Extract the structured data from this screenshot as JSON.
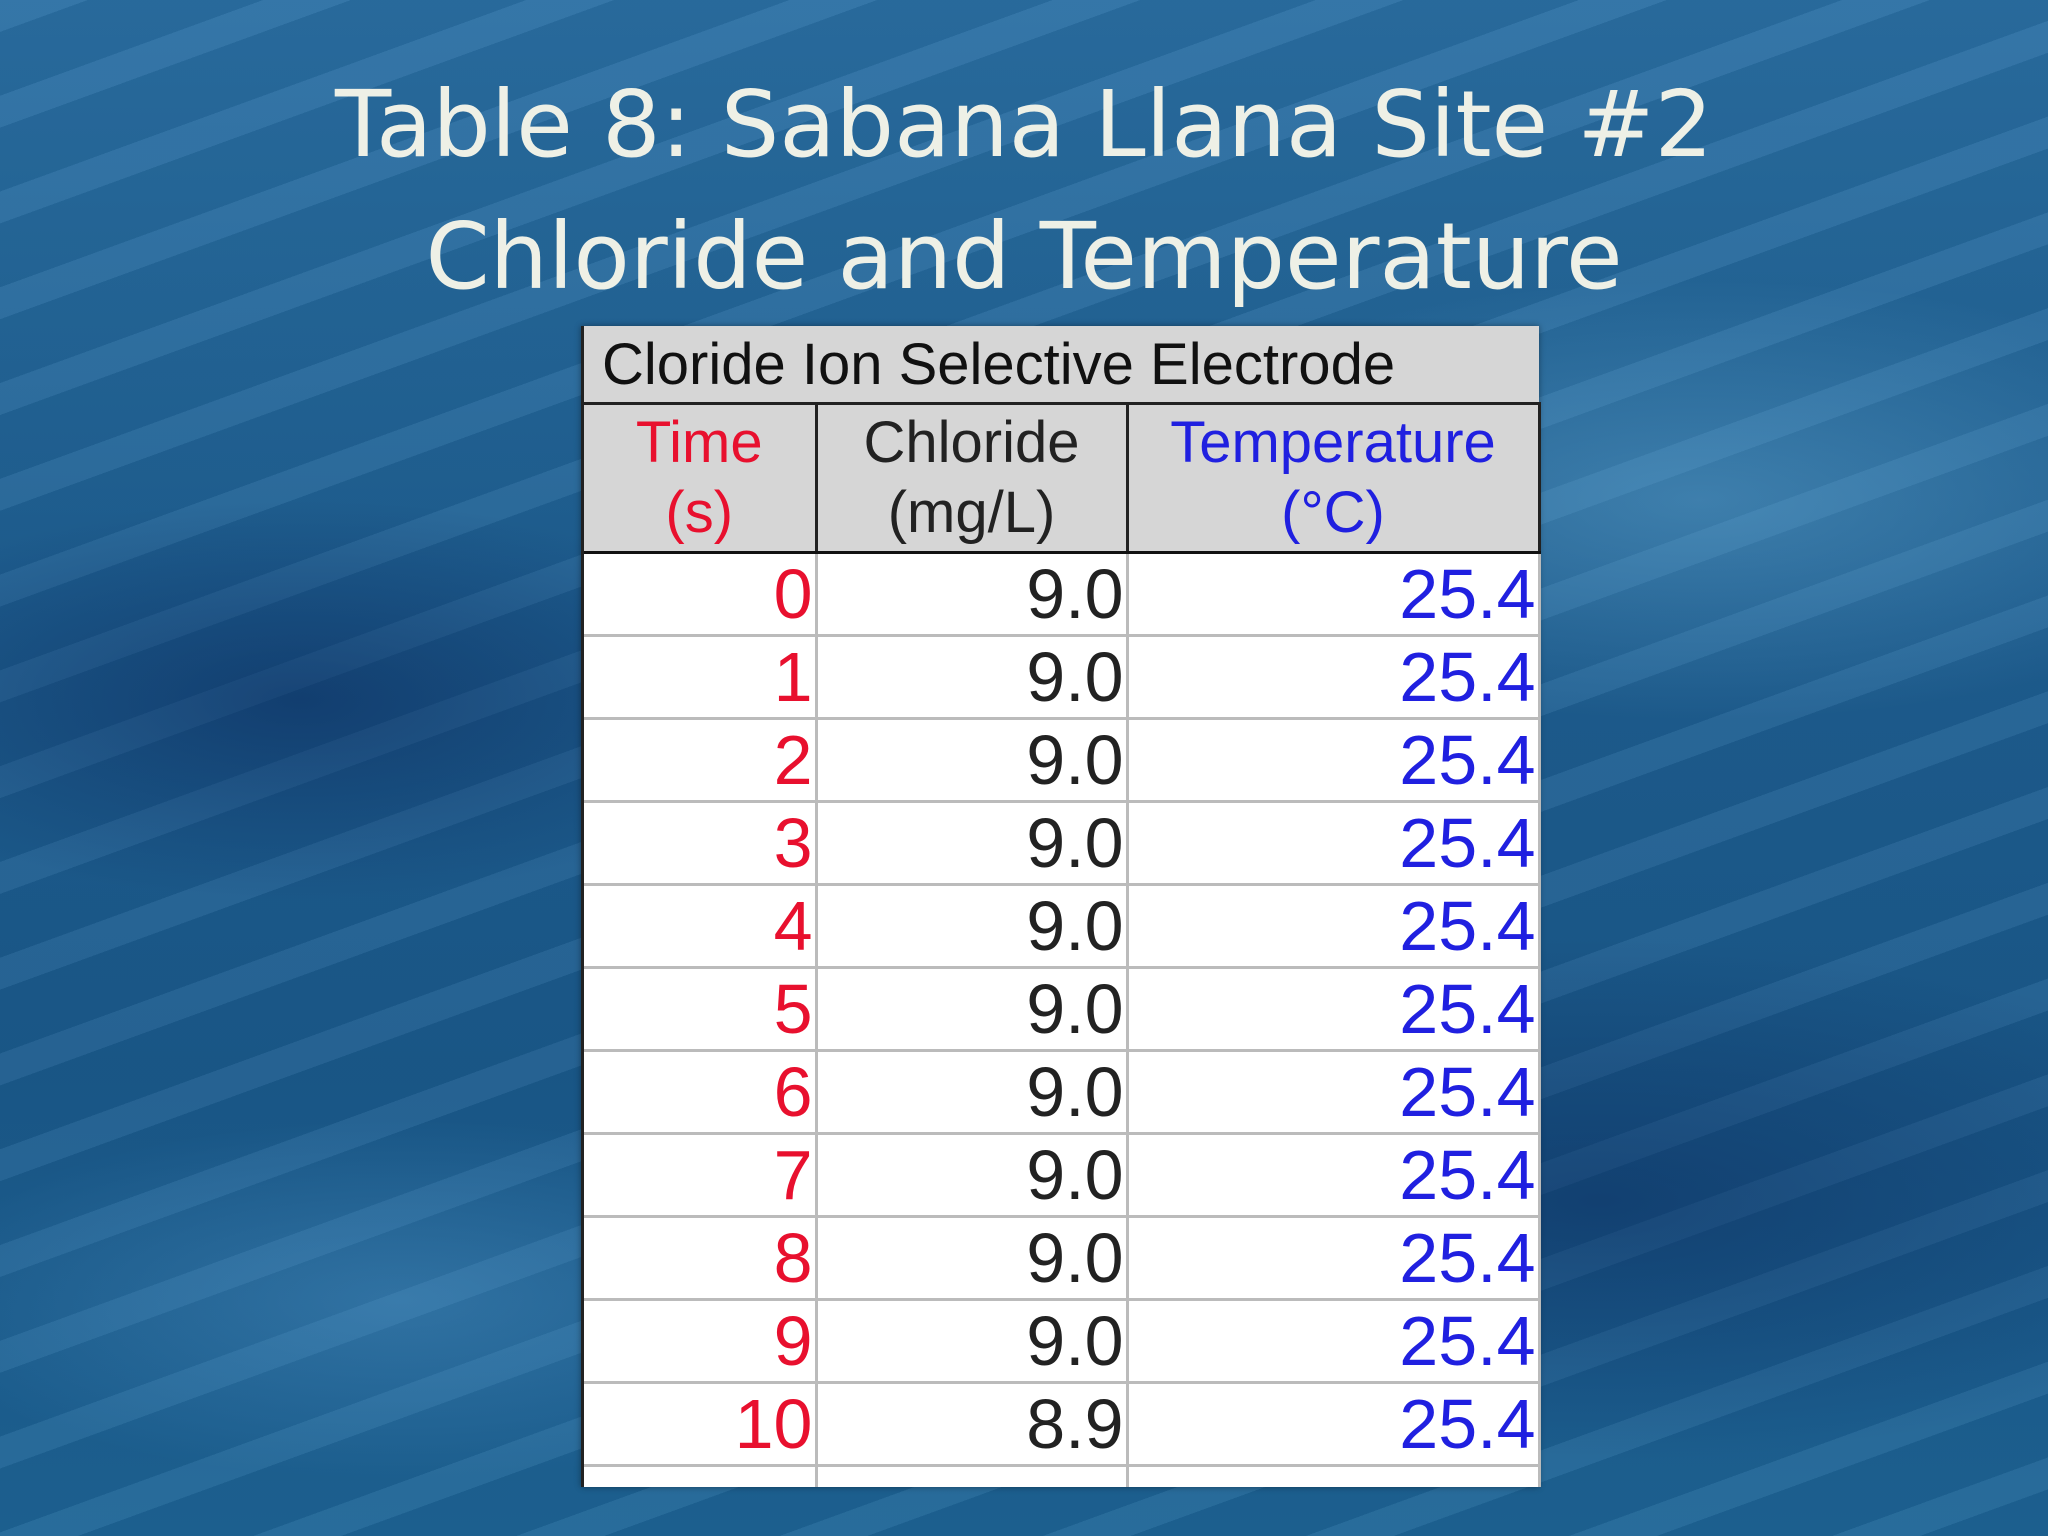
{
  "title": {
    "line1": "Table 8: Sabana Llana Site #2",
    "line2": "Chloride and Temperature"
  },
  "table": {
    "caption": "Cloride Ion Selective Electrode",
    "columns": [
      {
        "name": "Time",
        "unit": "(s)"
      },
      {
        "name": "Chloride",
        "unit": "(mg/L)"
      },
      {
        "name": "Temperature",
        "unit": "(°C)"
      }
    ],
    "rows": [
      [
        "0",
        "9.0",
        "25.4"
      ],
      [
        "1",
        "9.0",
        "25.4"
      ],
      [
        "2",
        "9.0",
        "25.4"
      ],
      [
        "3",
        "9.0",
        "25.4"
      ],
      [
        "4",
        "9.0",
        "25.4"
      ],
      [
        "5",
        "9.0",
        "25.4"
      ],
      [
        "6",
        "9.0",
        "25.4"
      ],
      [
        "7",
        "9.0",
        "25.4"
      ],
      [
        "8",
        "9.0",
        "25.4"
      ],
      [
        "9",
        "9.0",
        "25.4"
      ],
      [
        "10",
        "8.9",
        "25.4"
      ]
    ]
  }
}
